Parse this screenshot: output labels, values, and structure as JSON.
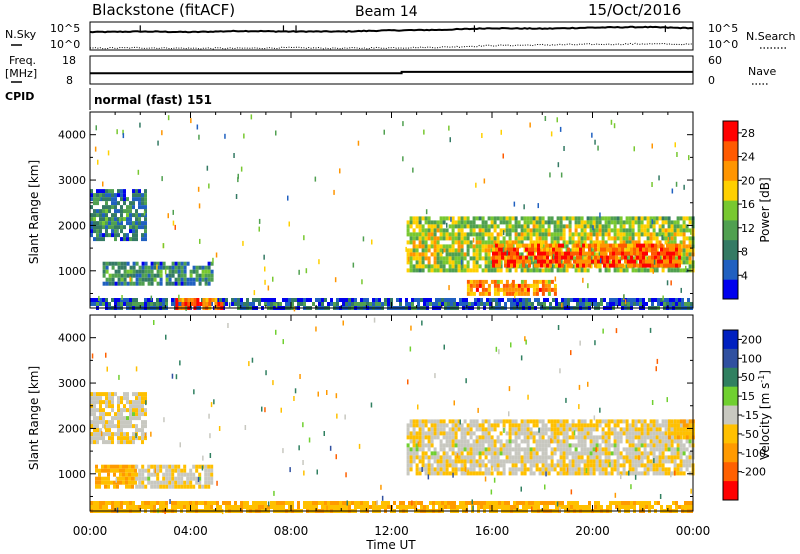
{
  "header": {
    "station": "Blackstone (fitACF)",
    "beam": "Beam 14",
    "date": "15/Oct/2016"
  },
  "noise_panel": {
    "left_label": "N.Sky",
    "right_label": "N.Search",
    "ticks": [
      "10^5",
      "10^0"
    ],
    "sky_style": "solid",
    "search_style": "dotted"
  },
  "freq_panel": {
    "left_label_top": "Freq.",
    "left_label_bottom": "[MHz]",
    "left_ticks": [
      "18",
      "8"
    ],
    "right_label": "Nave",
    "right_ticks": [
      "60",
      "0"
    ]
  },
  "cpid": {
    "label": "CPID",
    "value": "normal (fast) 151"
  },
  "x_axis": {
    "label": "Time UT",
    "ticks": [
      "00:00",
      "04:00",
      "08:00",
      "12:00",
      "16:00",
      "20:00",
      "00:00"
    ]
  },
  "y_axis": {
    "label": "Slant Range [km]",
    "ticks": [
      "1000",
      "2000",
      "3000",
      "4000"
    ]
  },
  "power_colorbar": {
    "label": "Power [dB]",
    "ticks": [
      "4",
      "8",
      "12",
      "16",
      "20",
      "24",
      "28"
    ]
  },
  "velocity_colorbar": {
    "label_main": "Velocity [m s",
    "label_sup": "-1",
    "label_end": "]",
    "ticks": [
      "200",
      "100",
      "50",
      "15",
      "-15",
      "-50",
      "-100",
      "-200"
    ]
  },
  "chart_data": [
    {
      "type": "line",
      "name": "noise",
      "x": [
        0,
        2,
        4,
        6,
        8,
        10,
        12,
        14,
        16,
        18,
        20,
        22,
        24
      ],
      "series": [
        {
          "values": [
            3.2,
            3.3,
            3.2,
            3.4,
            3.3,
            3.3,
            3.5,
            3.6,
            3.9,
            3.8,
            4.0,
            4.1,
            3.9
          ]
        },
        {
          "values": [
            0.3,
            0.4,
            0.3,
            0.3,
            0.4,
            0.3,
            0.4,
            0.5,
            0.8,
            0.9,
            1.0,
            1.1,
            1.0
          ]
        }
      ],
      "ylim": [
        0,
        5
      ],
      "xlim": [
        0,
        24
      ],
      "y_scale": "log10"
    },
    {
      "type": "line",
      "name": "frequency",
      "x": [
        0,
        12.4,
        12.4,
        24
      ],
      "values": [
        10.0,
        10.0,
        10.6,
        10.6
      ],
      "ylim": [
        5,
        18
      ],
      "xlim": [
        0,
        24
      ]
    },
    {
      "type": "heatmap",
      "name": "power",
      "x_unit": "hours UT",
      "y_unit": "km",
      "xlim": [
        0,
        24
      ],
      "ylim": [
        180,
        4500
      ],
      "colorbar_range": [
        0,
        30
      ],
      "regions": [
        {
          "x": [
            0.0,
            2.2
          ],
          "y": [
            1700,
            2800
          ],
          "level": 10
        },
        {
          "x": [
            0.5,
            4.8
          ],
          "y": [
            700,
            1200
          ],
          "level": 11
        },
        {
          "x": [
            0.0,
            24.0
          ],
          "y": [
            180,
            400
          ],
          "level": 8
        },
        {
          "x": [
            3.4,
            5.2
          ],
          "y": [
            180,
            400
          ],
          "level": 26
        },
        {
          "x": [
            12.6,
            24.0
          ],
          "y": [
            1000,
            2200
          ],
          "level": 18
        },
        {
          "x": [
            15.0,
            18.5
          ],
          "y": [
            500,
            800
          ],
          "level": 24
        },
        {
          "x": [
            16.0,
            23.5
          ],
          "y": [
            1100,
            1600
          ],
          "level": 27
        }
      ]
    },
    {
      "type": "heatmap",
      "name": "velocity",
      "x_unit": "hours UT",
      "y_unit": "km",
      "xlim": [
        0,
        24
      ],
      "ylim": [
        180,
        4500
      ],
      "colorbar_range": [
        -200,
        200
      ],
      "regions": [
        {
          "x": [
            0.0,
            2.2
          ],
          "y": [
            1700,
            2800
          ],
          "level": 0
        },
        {
          "x": [
            0.2,
            1.8
          ],
          "y": [
            700,
            1200
          ],
          "level": -40
        },
        {
          "x": [
            1.8,
            4.8
          ],
          "y": [
            700,
            1200
          ],
          "level": 0
        },
        {
          "x": [
            0.0,
            24.0
          ],
          "y": [
            180,
            400
          ],
          "level": -35
        },
        {
          "x": [
            12.6,
            24.0
          ],
          "y": [
            1000,
            2200
          ],
          "level": 0
        },
        {
          "x": [
            23.0,
            24.0
          ],
          "y": [
            1800,
            2200
          ],
          "level": -30
        }
      ]
    }
  ],
  "colors": {
    "ground": "#a8a8a8",
    "power_scale": [
      "#0000ee",
      "#2060c0",
      "#347a64",
      "#50a050",
      "#78c830",
      "#ffd000",
      "#ff9500",
      "#ff5a00",
      "#ff0000"
    ],
    "velocity_scale": [
      "#ff0000",
      "#ff6000",
      "#ff9a00",
      "#ffc000",
      "#c8c8c0",
      "#70d030",
      "#308060",
      "#3050a0",
      "#0020c0"
    ]
  }
}
